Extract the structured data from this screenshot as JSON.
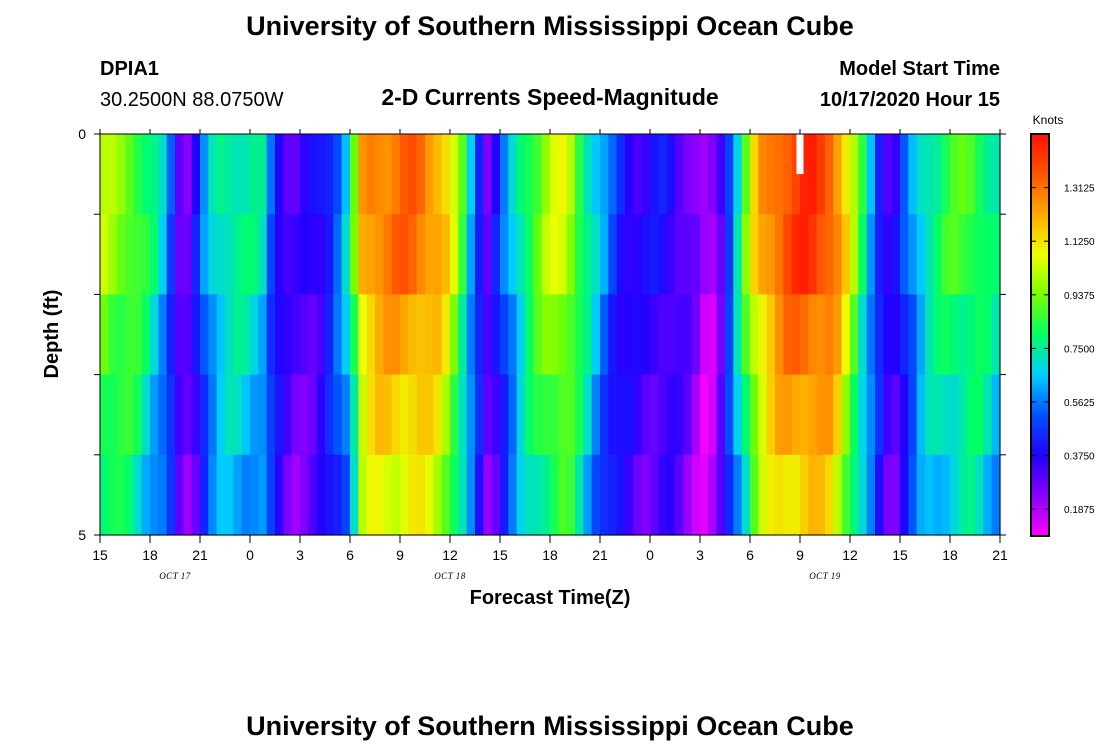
{
  "header": {
    "title": "University of Southern Mississippi Ocean Cube",
    "station": "DPIA1",
    "coords": "30.2500N 88.0750W",
    "subtitle": "2-D Currents Speed-Magnitude",
    "model_label": "Model Start Time",
    "model_time": "10/17/2020 Hour 15"
  },
  "footer": {
    "title": "University of Southern Mississippi Ocean Cube"
  },
  "chart_data": {
    "type": "heatmap",
    "title": "2-D Currents Speed-Magnitude",
    "xlabel": "Forecast Time(Z)",
    "ylabel": "Depth (ft)",
    "xlim": [
      0,
      54
    ],
    "ylim": [
      5,
      0
    ],
    "x_ticks": [
      {
        "x": 0,
        "label": "15"
      },
      {
        "x": 3,
        "label": "18"
      },
      {
        "x": 6,
        "label": "21"
      },
      {
        "x": 9,
        "label": "0"
      },
      {
        "x": 12,
        "label": "3"
      },
      {
        "x": 15,
        "label": "6"
      },
      {
        "x": 18,
        "label": "9"
      },
      {
        "x": 21,
        "label": "12"
      },
      {
        "x": 24,
        "label": "15"
      },
      {
        "x": 27,
        "label": "18"
      },
      {
        "x": 30,
        "label": "21"
      },
      {
        "x": 33,
        "label": "0"
      },
      {
        "x": 36,
        "label": "3"
      },
      {
        "x": 39,
        "label": "6"
      },
      {
        "x": 42,
        "label": "9"
      },
      {
        "x": 45,
        "label": "12"
      },
      {
        "x": 48,
        "label": "15"
      },
      {
        "x": 51,
        "label": "18"
      },
      {
        "x": 54,
        "label": "21"
      }
    ],
    "y_ticks": [
      {
        "y": 0,
        "label": "0"
      },
      {
        "y": 1,
        "label": ""
      },
      {
        "y": 2,
        "label": ""
      },
      {
        "y": 3,
        "label": ""
      },
      {
        "y": 4,
        "label": ""
      },
      {
        "y": 5,
        "label": "5"
      }
    ],
    "date_labels": [
      {
        "x": 4.5,
        "label": "OCT 17"
      },
      {
        "x": 21,
        "label": "OCT 18"
      },
      {
        "x": 43.5,
        "label": "OCT 19"
      }
    ],
    "colorbar": {
      "units": "Knots",
      "min": 0.09375,
      "max": 1.5,
      "ticks": [
        "0.1875",
        "0.3750",
        "0.5625",
        "0.7500",
        "0.9375",
        "1.1250",
        "1.3125"
      ],
      "stops": [
        "#ff00ff",
        "#8800ff",
        "#2200ff",
        "#0050ff",
        "#00ccff",
        "#00ff66",
        "#77ff00",
        "#eeff00",
        "#ffaa00",
        "#ff5500",
        "#ff1100"
      ]
    },
    "rows": 5,
    "time_step_hours": 0.5,
    "profile": [
      {
        "t": 0,
        "v": 1.0
      },
      {
        "t": 2,
        "v": 0.92
      },
      {
        "t": 3,
        "v": 0.78
      },
      {
        "t": 4,
        "v": 0.62
      },
      {
        "t": 4.5,
        "v": 0.4
      },
      {
        "t": 5,
        "v": 0.25
      },
      {
        "t": 5.5,
        "v": 0.32
      },
      {
        "t": 6.3,
        "v": 0.58
      },
      {
        "t": 7,
        "v": 0.73
      },
      {
        "t": 8,
        "v": 0.78
      },
      {
        "t": 9.7,
        "v": 0.72
      },
      {
        "t": 10.5,
        "v": 0.45
      },
      {
        "t": 11.5,
        "v": 0.3
      },
      {
        "t": 13,
        "v": 0.36
      },
      {
        "t": 14,
        "v": 0.5
      },
      {
        "t": 15,
        "v": 0.72
      },
      {
        "t": 15.7,
        "v": 1.2
      },
      {
        "t": 16.5,
        "v": 1.3
      },
      {
        "t": 19,
        "v": 1.33
      },
      {
        "t": 20.5,
        "v": 1.22
      },
      {
        "t": 21.5,
        "v": 0.95
      },
      {
        "t": 22.5,
        "v": 0.55
      },
      {
        "t": 23.3,
        "v": 0.28
      },
      {
        "t": 24.3,
        "v": 0.55
      },
      {
        "t": 25.5,
        "v": 0.82
      },
      {
        "t": 27,
        "v": 1.02
      },
      {
        "t": 28,
        "v": 1.05
      },
      {
        "t": 29,
        "v": 0.82
      },
      {
        "t": 30,
        "v": 0.62
      },
      {
        "t": 31,
        "v": 0.45
      },
      {
        "t": 32.5,
        "v": 0.35
      },
      {
        "t": 34,
        "v": 0.4
      },
      {
        "t": 35.5,
        "v": 0.28
      },
      {
        "t": 36.5,
        "v": 0.14
      },
      {
        "t": 37.2,
        "v": 0.3
      },
      {
        "t": 38.3,
        "v": 0.75
      },
      {
        "t": 39.5,
        "v": 1.2
      },
      {
        "t": 41,
        "v": 1.38
      },
      {
        "t": 42.5,
        "v": 1.44
      },
      {
        "t": 44,
        "v": 1.36
      },
      {
        "t": 45,
        "v": 1.05
      },
      {
        "t": 46,
        "v": 0.72
      },
      {
        "t": 46.8,
        "v": 0.45
      },
      {
        "t": 47.5,
        "v": 0.3
      },
      {
        "t": 48.3,
        "v": 0.5
      },
      {
        "t": 49.5,
        "v": 0.75
      },
      {
        "t": 51,
        "v": 0.85
      },
      {
        "t": 52.5,
        "v": 0.88
      },
      {
        "t": 54,
        "v": 0.72
      }
    ],
    "depth_factors": [
      1.0,
      1.0,
      0.93,
      0.88,
      0.82
    ],
    "missing_cells": [
      {
        "t": 42,
        "row": 0
      }
    ]
  }
}
